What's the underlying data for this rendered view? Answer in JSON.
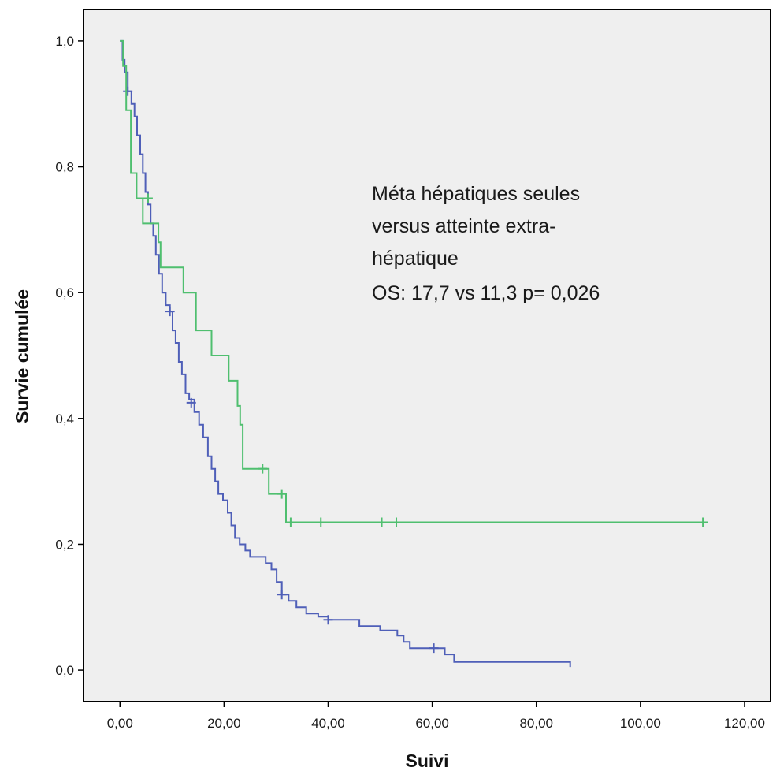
{
  "chart_data": {
    "type": "line",
    "subtype": "kaplan-meier-step",
    "xlabel": "Suivi",
    "ylabel": "Survie cumulée",
    "xlim": [
      -7,
      125
    ],
    "ylim": [
      -0.05,
      1.05
    ],
    "x_ticks": [
      0,
      20,
      40,
      60,
      80,
      100,
      120
    ],
    "x_tick_labels": [
      "0,00",
      "20,00",
      "40,00",
      "60,00",
      "80,00",
      "100,00",
      "120,00"
    ],
    "y_ticks": [
      0,
      0.2,
      0.4,
      0.6,
      0.8,
      1.0
    ],
    "y_tick_labels": [
      "0,0",
      "0,2",
      "0,4",
      "0,6",
      "0,8",
      "1,0"
    ],
    "grid": false,
    "plot_background": "#efefef",
    "annotation_lines": [
      "Méta hépatiques seules",
      "versus atteinte extra-",
      "hépatique",
      "OS: 17,7 vs 11,3  p= 0,026"
    ],
    "series": [
      {
        "color": "#4f5fb8",
        "steps": [
          [
            0,
            1.0
          ],
          [
            0.5,
            0.97
          ],
          [
            0.9,
            0.95
          ],
          [
            1.5,
            0.92
          ],
          [
            2.2,
            0.9
          ],
          [
            2.8,
            0.88
          ],
          [
            3.3,
            0.85
          ],
          [
            3.9,
            0.82
          ],
          [
            4.4,
            0.79
          ],
          [
            4.9,
            0.76
          ],
          [
            5.4,
            0.74
          ],
          [
            5.9,
            0.71
          ],
          [
            6.4,
            0.69
          ],
          [
            6.9,
            0.66
          ],
          [
            7.5,
            0.63
          ],
          [
            8.1,
            0.6
          ],
          [
            8.8,
            0.58
          ],
          [
            9.6,
            0.57
          ],
          [
            10.1,
            0.54
          ],
          [
            10.7,
            0.52
          ],
          [
            11.3,
            0.49
          ],
          [
            11.9,
            0.47
          ],
          [
            12.6,
            0.44
          ],
          [
            13.3,
            0.43
          ],
          [
            14.3,
            0.41
          ],
          [
            15.2,
            0.39
          ],
          [
            16.0,
            0.37
          ],
          [
            16.9,
            0.34
          ],
          [
            17.6,
            0.32
          ],
          [
            18.3,
            0.3
          ],
          [
            18.9,
            0.28
          ],
          [
            19.8,
            0.27
          ],
          [
            20.7,
            0.25
          ],
          [
            21.4,
            0.23
          ],
          [
            22.1,
            0.21
          ],
          [
            23.0,
            0.2
          ],
          [
            24.1,
            0.19
          ],
          [
            25.0,
            0.18
          ],
          [
            28.0,
            0.17
          ],
          [
            29.1,
            0.16
          ],
          [
            30.1,
            0.14
          ],
          [
            31.1,
            0.12
          ],
          [
            32.4,
            0.11
          ],
          [
            33.9,
            0.1
          ],
          [
            35.8,
            0.09
          ],
          [
            38.1,
            0.085
          ],
          [
            40.0,
            0.08
          ],
          [
            46.0,
            0.07
          ],
          [
            50.0,
            0.063
          ],
          [
            53.3,
            0.055
          ],
          [
            54.5,
            0.045
          ],
          [
            55.7,
            0.035
          ],
          [
            62.4,
            0.025
          ],
          [
            64.2,
            0.013
          ],
          [
            86.5,
            0.013
          ],
          [
            86.5,
            0.005
          ]
        ],
        "censored": [
          [
            1.5,
            0.92
          ],
          [
            9.6,
            0.57
          ],
          [
            13.7,
            0.425
          ],
          [
            31.1,
            0.12
          ],
          [
            40.0,
            0.08
          ],
          [
            60.3,
            0.035
          ]
        ]
      },
      {
        "color": "#4fbf6f",
        "steps": [
          [
            0,
            1.0
          ],
          [
            0.6,
            0.96
          ],
          [
            1.2,
            0.89
          ],
          [
            2.1,
            0.79
          ],
          [
            3.2,
            0.75
          ],
          [
            4.4,
            0.71
          ],
          [
            7.4,
            0.68
          ],
          [
            7.8,
            0.64
          ],
          [
            12.2,
            0.6
          ],
          [
            14.6,
            0.54
          ],
          [
            17.6,
            0.5
          ],
          [
            20.9,
            0.46
          ],
          [
            22.6,
            0.42
          ],
          [
            23.1,
            0.39
          ],
          [
            23.6,
            0.32
          ],
          [
            28.6,
            0.28
          ],
          [
            31.9,
            0.235
          ],
          [
            112.0,
            0.235
          ]
        ],
        "censored": [
          [
            5.4,
            0.75
          ],
          [
            27.4,
            0.32
          ],
          [
            31.1,
            0.28
          ],
          [
            32.8,
            0.235
          ],
          [
            38.6,
            0.235
          ],
          [
            50.3,
            0.235
          ],
          [
            53.1,
            0.235
          ],
          [
            112.0,
            0.235
          ]
        ]
      }
    ]
  }
}
